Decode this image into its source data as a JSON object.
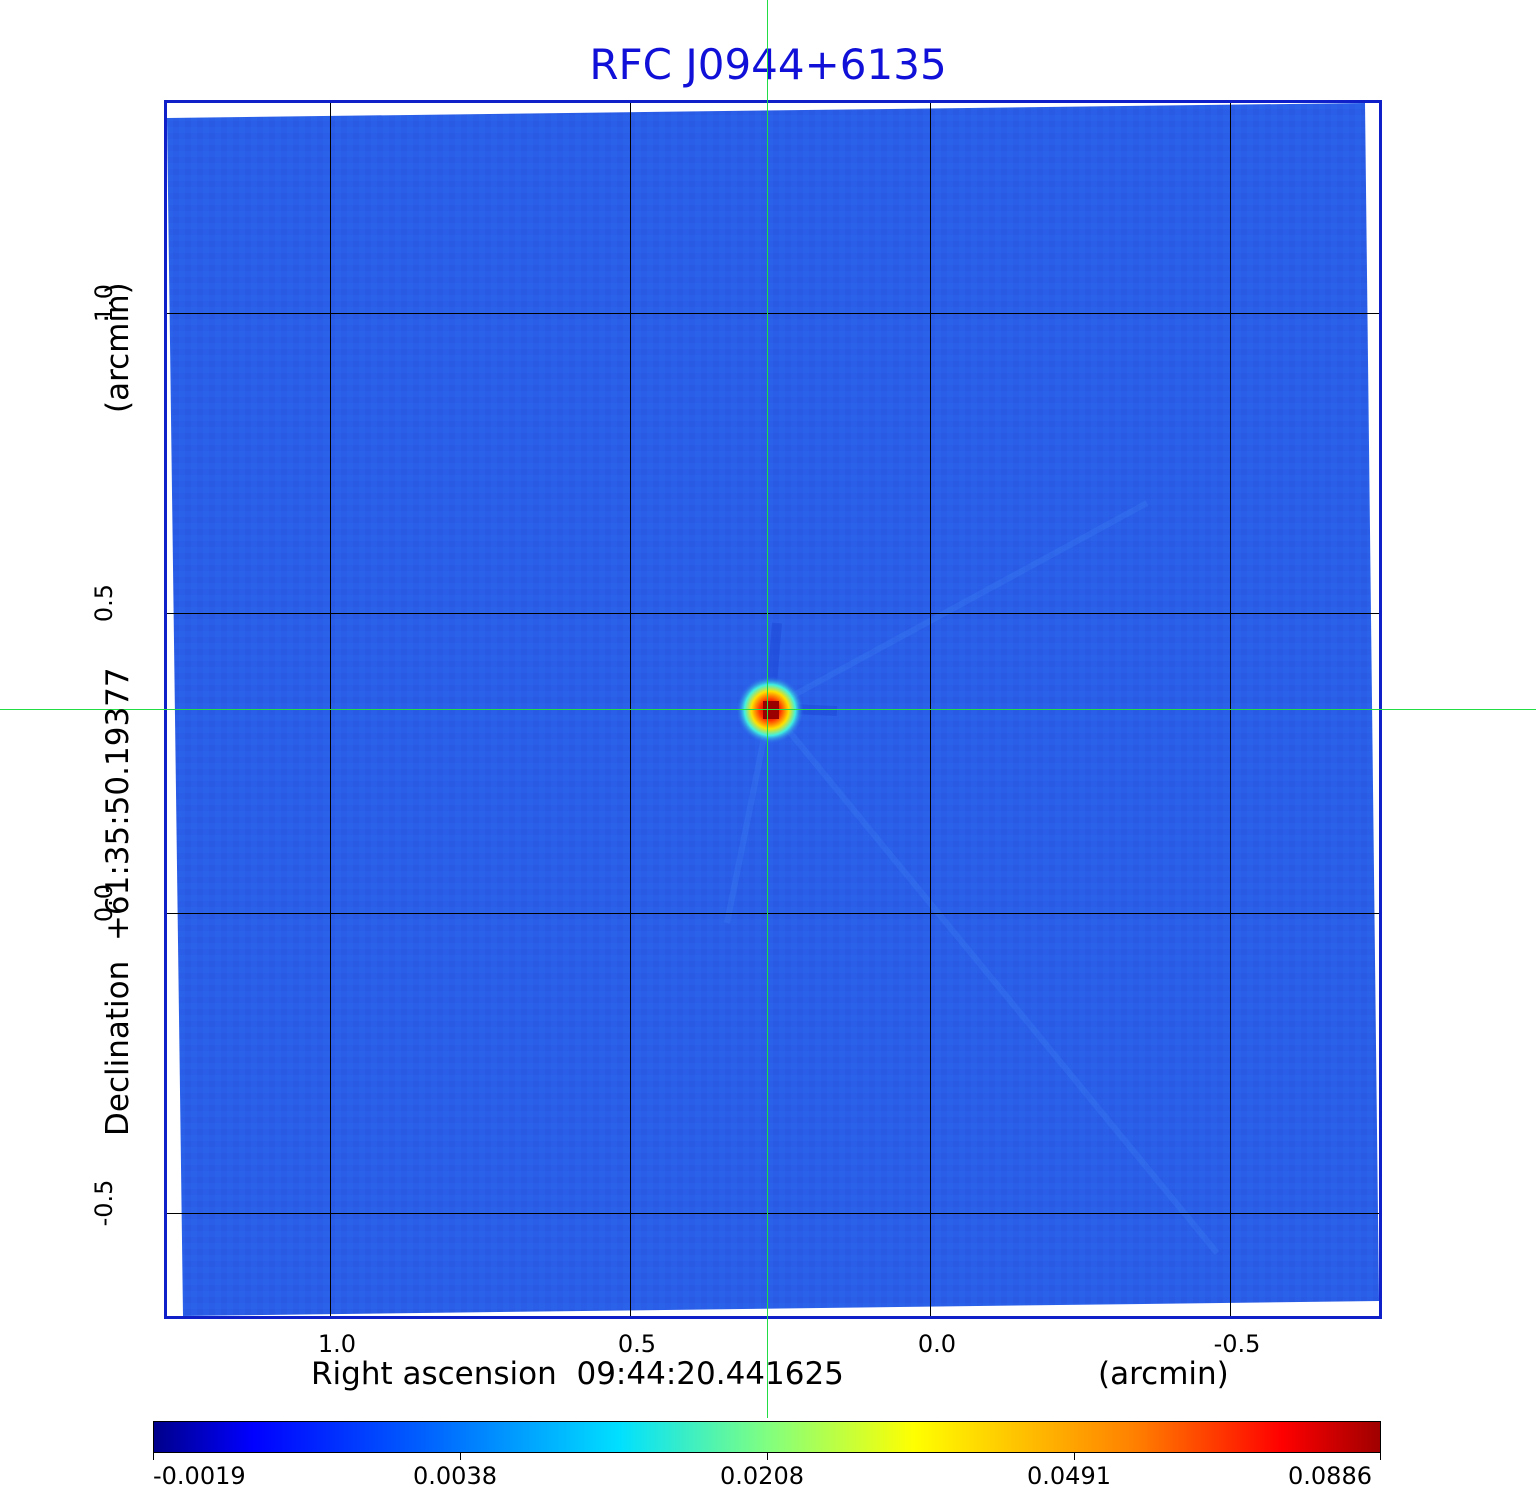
{
  "title": "RFC J0944+6135",
  "colors": {
    "title": "#1010d8",
    "frame": "#1020c8",
    "background_field": "#2a5ee8",
    "crosshair": "#22dd44",
    "grid": "#000000"
  },
  "x_axis": {
    "label": "Right ascension  09:44:20.441625",
    "unit": "(arcmin)",
    "ticks": [
      "1.0",
      "0.5",
      "0.0",
      "-0.5"
    ]
  },
  "y_axis": {
    "label": "Declination  +61:35:50.19377",
    "unit": "(arcmin)",
    "ticks": [
      "1.0",
      "0.5",
      "0.0",
      "-0.5"
    ]
  },
  "colorbar": {
    "colormap": "jet",
    "ticks": [
      "-0.0019",
      "0.0038",
      "0.0208",
      "0.0491",
      "0.0886"
    ]
  }
}
